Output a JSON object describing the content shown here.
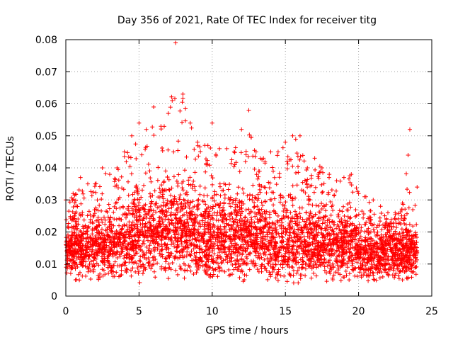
{
  "chart_data": {
    "type": "scatter",
    "title": "Day 356 of 2021, Rate Of TEC Index for receiver titg",
    "xlabel": "GPS time / hours",
    "ylabel": "ROTI / TECUs",
    "xlim": [
      0,
      25
    ],
    "ylim": [
      0,
      0.08
    ],
    "x_ticks": [
      0,
      5,
      10,
      15,
      20,
      25
    ],
    "x_tick_labels": [
      "0",
      "5",
      "10",
      "15",
      "20",
      "25"
    ],
    "y_ticks": [
      0,
      0.01,
      0.02,
      0.03,
      0.04,
      0.05,
      0.06,
      0.07,
      0.08
    ],
    "y_tick_labels": [
      "0",
      "0.01",
      "0.02",
      "0.03",
      "0.04",
      "0.05",
      "0.06",
      "0.07",
      "0.08"
    ],
    "grid": true,
    "marker": "+",
    "series_color": "#ff0000",
    "envelope": {
      "hours": [
        0,
        0.5,
        1,
        1.5,
        2,
        2.5,
        3,
        3.5,
        4,
        4.5,
        5,
        5.5,
        6,
        6.5,
        7,
        7.5,
        8,
        8.5,
        9,
        9.5,
        10,
        10.5,
        11,
        11.5,
        12,
        12.5,
        13,
        13.5,
        14,
        14.5,
        15,
        15.5,
        16,
        16.5,
        17,
        17.5,
        18,
        18.5,
        19,
        19.5,
        20,
        20.5,
        21,
        21.5,
        22,
        22.5,
        23,
        23.5,
        24
      ],
      "low": [
        0.007,
        0.005,
        0.004,
        0.004,
        0.004,
        0.004,
        0.004,
        0.004,
        0.004,
        0.004,
        0.004,
        0.004,
        0.005,
        0.004,
        0.005,
        0.005,
        0.005,
        0.005,
        0.005,
        0.004,
        0.004,
        0.005,
        0.005,
        0.005,
        0.004,
        0.004,
        0.004,
        0.004,
        0.004,
        0.003,
        0.004,
        0.003,
        0.004,
        0.004,
        0.004,
        0.004,
        0.004,
        0.004,
        0.004,
        0.004,
        0.004,
        0.004,
        0.004,
        0.004,
        0.004,
        0.004,
        0.003,
        0.004,
        0.005
      ],
      "typical": [
        0.022,
        0.026,
        0.025,
        0.025,
        0.027,
        0.026,
        0.026,
        0.027,
        0.028,
        0.03,
        0.033,
        0.032,
        0.032,
        0.034,
        0.036,
        0.038,
        0.036,
        0.034,
        0.032,
        0.031,
        0.031,
        0.032,
        0.03,
        0.03,
        0.031,
        0.032,
        0.029,
        0.029,
        0.029,
        0.029,
        0.028,
        0.029,
        0.029,
        0.028,
        0.028,
        0.028,
        0.027,
        0.027,
        0.026,
        0.026,
        0.024,
        0.023,
        0.022,
        0.022,
        0.022,
        0.023,
        0.022,
        0.024,
        0.022
      ],
      "peak": [
        0.03,
        0.032,
        0.037,
        0.035,
        0.035,
        0.04,
        0.038,
        0.04,
        0.045,
        0.05,
        0.054,
        0.052,
        0.059,
        0.053,
        0.057,
        0.079,
        0.063,
        0.054,
        0.048,
        0.047,
        0.054,
        0.046,
        0.046,
        0.045,
        0.052,
        0.058,
        0.045,
        0.043,
        0.045,
        0.045,
        0.048,
        0.05,
        0.05,
        0.04,
        0.043,
        0.04,
        0.038,
        0.036,
        0.037,
        0.038,
        0.032,
        0.031,
        0.03,
        0.028,
        0.026,
        0.026,
        0.029,
        0.052,
        0.034
      ]
    }
  }
}
